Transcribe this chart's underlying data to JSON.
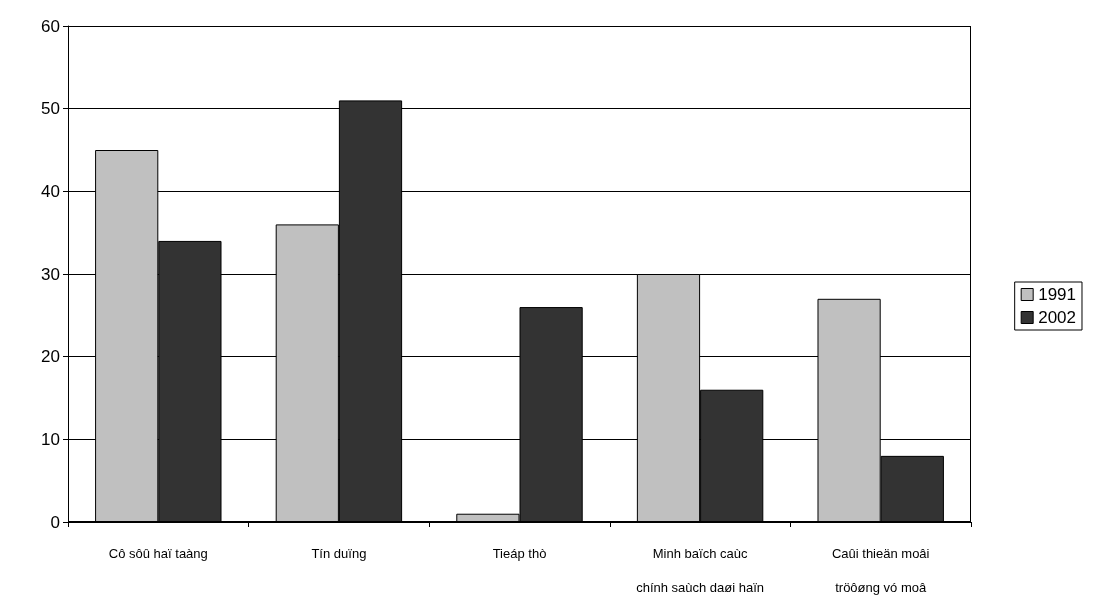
{
  "chart_data": {
    "type": "bar",
    "categories": [
      "Cô sôû haï taàng",
      "Tín duïng",
      "Tieáp thò",
      "Minh baïch caùc\nchính saùch daøi haïn",
      "Caûi thieän moâi\ntröôøng vó moâ"
    ],
    "series": [
      {
        "name": "1991",
        "color": "#c0c0c0",
        "values": [
          45,
          36,
          1,
          30,
          27
        ]
      },
      {
        "name": "2002",
        "color": "#333333",
        "values": [
          34,
          51,
          26,
          16,
          8
        ]
      }
    ],
    "ylim": [
      0,
      60
    ],
    "yticks": [
      0,
      10,
      20,
      30,
      40,
      50,
      60
    ],
    "grid": "y",
    "legend": "right"
  }
}
